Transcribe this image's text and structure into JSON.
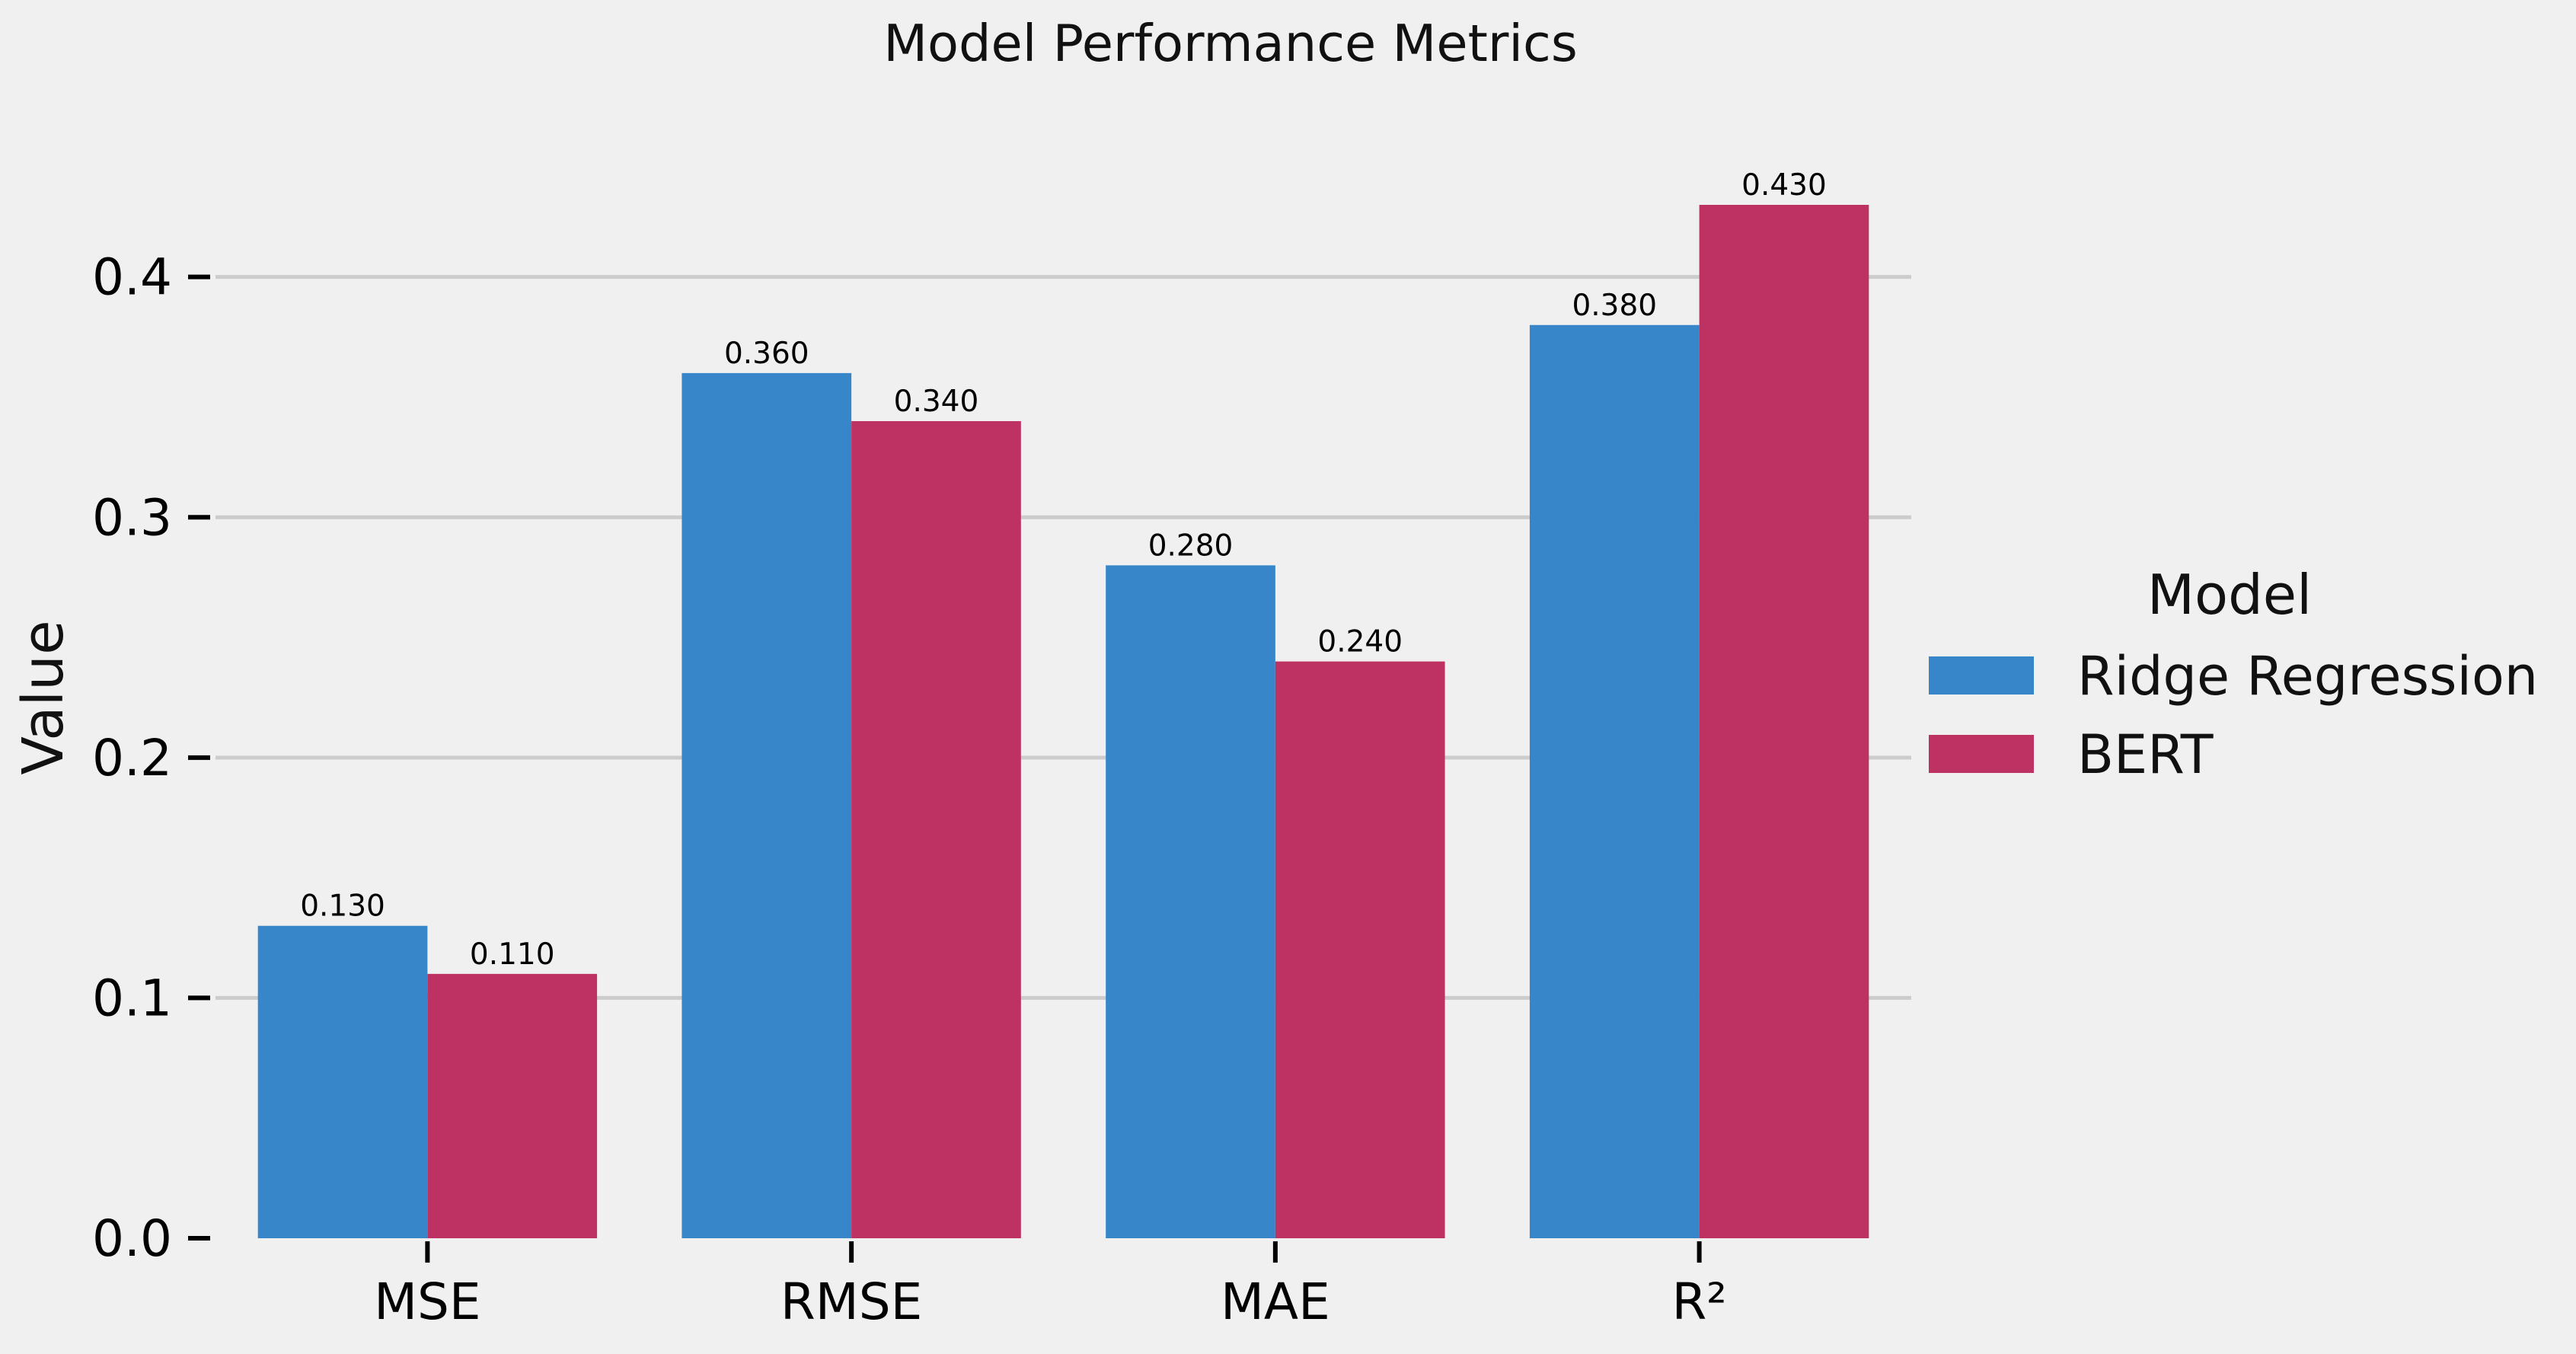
{
  "chart_data": {
    "type": "bar",
    "title": "Model Performance Metrics",
    "xlabel": "",
    "ylabel": "Value",
    "categories": [
      "MSE",
      "RMSE",
      "MAE",
      "R²"
    ],
    "series": [
      {
        "name": "Ridge Regression",
        "values": [
          0.13,
          0.36,
          0.28,
          0.38
        ],
        "color": "#3886CA",
        "labels": [
          "0.130",
          "0.360",
          "0.280",
          "0.380"
        ]
      },
      {
        "name": "BERT",
        "values": [
          0.11,
          0.34,
          0.24,
          0.43
        ],
        "color": "#BE3263",
        "labels": [
          "0.110",
          "0.340",
          "0.240",
          "0.430"
        ]
      }
    ],
    "ylim": [
      0,
      0.43
    ],
    "yticks": [
      0.0,
      0.1,
      0.2,
      0.3,
      0.4
    ],
    "ytick_labels": [
      "0.0",
      "0.1",
      "0.2",
      "0.3",
      "0.4"
    ],
    "grid": "horizontal",
    "legend": {
      "title": "Model",
      "placement": "right"
    },
    "background": "#f0f0f0",
    "grid_color": "#cccccc"
  }
}
